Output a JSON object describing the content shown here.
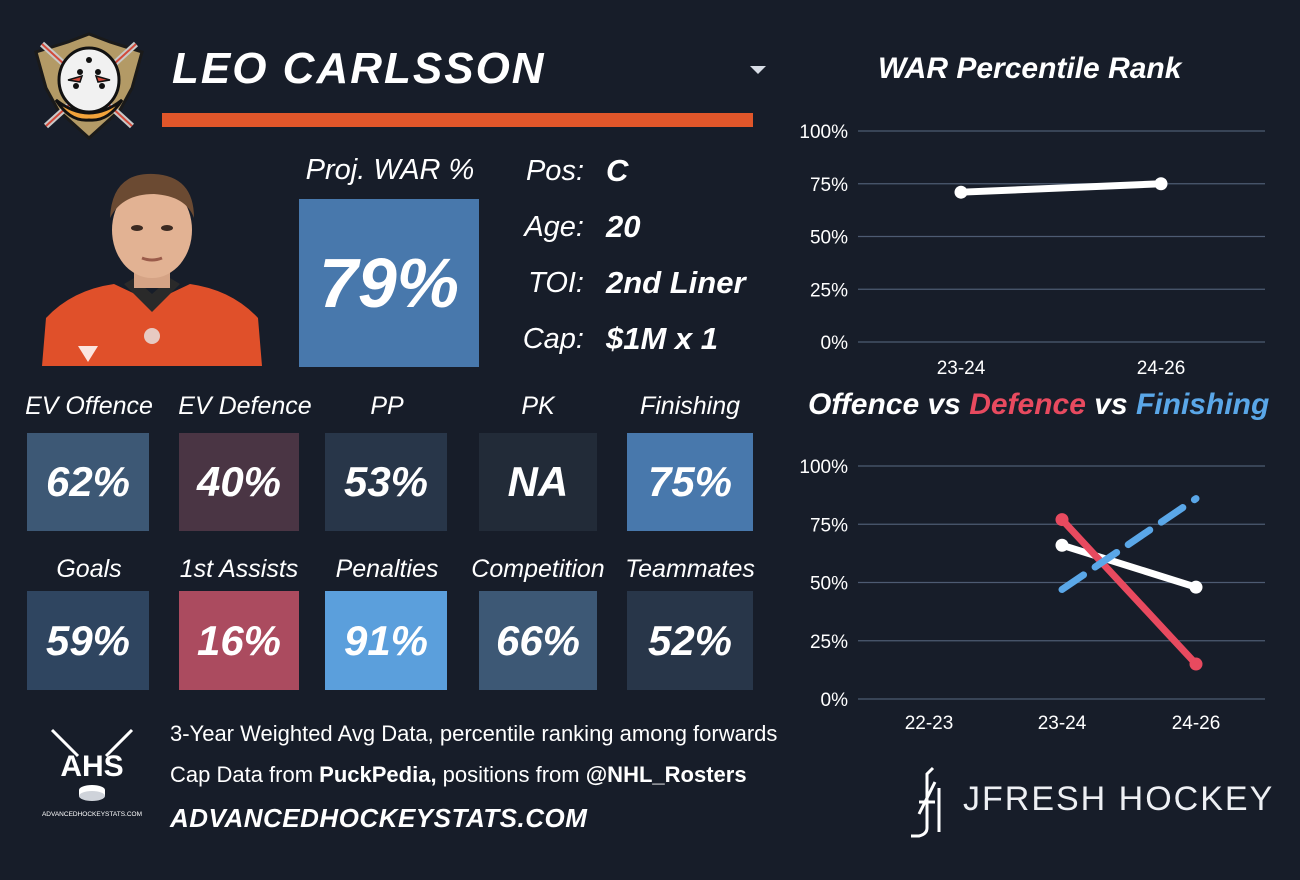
{
  "player": {
    "name": "LEO CARLSSON",
    "proj_war_label": "Proj. WAR %",
    "proj_war_value": "79%",
    "info": [
      {
        "label": "Pos:",
        "value": "C"
      },
      {
        "label": "Age:",
        "value": "20"
      },
      {
        "label": "TOI:",
        "value": "2nd Liner"
      },
      {
        "label": "Cap:",
        "value": "$1M x 1"
      }
    ]
  },
  "tiles": [
    {
      "label": "EV Offence",
      "value": "62%",
      "color": "#3d5875"
    },
    {
      "label": "EV Defence",
      "value": "40%",
      "color": "#4a3544"
    },
    {
      "label": "PP",
      "value": "53%",
      "color": "#283649"
    },
    {
      "label": "PK",
      "value": "NA",
      "color": "#222b38"
    },
    {
      "label": "Finishing",
      "value": "75%",
      "color": "#4878ac"
    },
    {
      "label": "Goals",
      "value": "59%",
      "color": "#2f4560"
    },
    {
      "label": "1st Assists",
      "value": "16%",
      "color": "#ab4b5f"
    },
    {
      "label": "Penalties",
      "value": "91%",
      "color": "#5b9fdc"
    },
    {
      "label": "Competition",
      "value": "66%",
      "color": "#3d5875"
    },
    {
      "label": "Teammates",
      "value": "52%",
      "color": "#283649"
    }
  ],
  "colors": {
    "background": "#171d29",
    "accent_orange": "#e0562a",
    "war_line": "#ffffff",
    "defence": "#e84a5f",
    "finishing": "#5aa7e8",
    "gridline": "#4d5b72"
  },
  "chart_data": [
    {
      "type": "line",
      "title": "WAR Percentile Rank",
      "x": [
        "23-24",
        "24-26"
      ],
      "ylim": [
        0,
        100
      ],
      "yticks": [
        "0%",
        "25%",
        "50%",
        "75%",
        "100%"
      ],
      "series": [
        {
          "values": [
            71,
            75
          ],
          "color": "#ffffff",
          "style": "solid"
        }
      ],
      "grid": true
    },
    {
      "type": "line",
      "title_parts": [
        {
          "text": "Offence",
          "color": "#ffffff"
        },
        {
          "text": " vs ",
          "color": "#ffffff"
        },
        {
          "text": "Defence",
          "color": "#e84a5f"
        },
        {
          "text": " vs ",
          "color": "#ffffff"
        },
        {
          "text": "Finishing",
          "color": "#5aa7e8"
        }
      ],
      "x": [
        "22-23",
        "23-24",
        "24-26"
      ],
      "ylim": [
        0,
        100
      ],
      "yticks": [
        "0%",
        "25%",
        "50%",
        "75%",
        "100%"
      ],
      "series": [
        {
          "name": "Offence",
          "values": [
            null,
            66,
            48
          ],
          "color": "#ffffff",
          "style": "solid"
        },
        {
          "name": "Defence",
          "values": [
            null,
            77,
            15
          ],
          "color": "#e84a5f",
          "style": "solid"
        },
        {
          "name": "Finishing",
          "values": [
            null,
            47,
            86
          ],
          "color": "#5aa7e8",
          "style": "dashed"
        }
      ],
      "grid": true
    }
  ],
  "footer": {
    "ahs_logo_text": "AHS",
    "ahs_logo_subtext": "ADVANCEDHOCKEYSTATS.COM",
    "line1": "3-Year Weighted Avg Data, percentile ranking among forwards",
    "line2_prefix": "Cap Data from ",
    "line2_source1": "PuckPedia,",
    "line2_middle": " positions from ",
    "line2_source2": "@NHL_Rosters",
    "website": "ADVANCEDHOCKEYSTATS.COM",
    "brand": "JFRESH HOCKEY"
  }
}
